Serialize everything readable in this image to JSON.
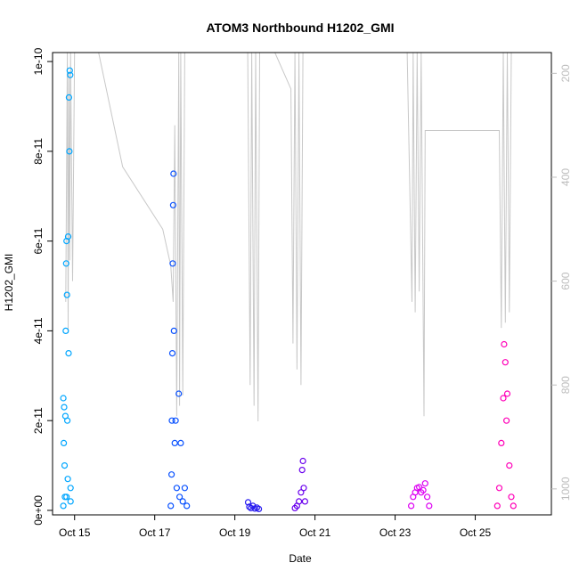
{
  "chart_data": {
    "type": "scatter",
    "title": "ATOM3 Northbound H1202_GMI",
    "xlabel": "Date",
    "ylabel": "H1202_GMI",
    "x_ticks": [
      "Oct 15",
      "Oct 17",
      "Oct 19",
      "Oct 21",
      "Oct 23",
      "Oct 25"
    ],
    "x_tick_days": [
      15,
      17,
      19,
      21,
      23,
      25
    ],
    "xlim": [
      14.45,
      26.9
    ],
    "y_ticks": [
      0,
      2e-11,
      4e-11,
      6e-11,
      8e-11,
      1e-10
    ],
    "y_tick_labels": [
      "0e+00",
      "2e-11",
      "4e-11",
      "6e-11",
      "8e-11",
      "1e-10"
    ],
    "ylim": [
      -1e-12,
      1.02e-10
    ],
    "right_axis": {
      "ticks": [
        200,
        400,
        600,
        800,
        1000
      ],
      "reversed": true,
      "lim": [
        1050,
        160
      ],
      "color": "#bdbdbd"
    },
    "pressure_trace": [
      [
        14.78,
        640
      ],
      [
        14.8,
        400
      ],
      [
        14.82,
        160
      ],
      [
        14.84,
        700
      ],
      [
        14.86,
        200
      ],
      [
        14.88,
        560
      ],
      [
        14.9,
        160
      ],
      [
        14.95,
        600
      ],
      [
        15.0,
        160
      ],
      [
        15.6,
        160
      ],
      [
        16.2,
        380
      ],
      [
        17.2,
        500
      ],
      [
        17.4,
        570
      ],
      [
        17.46,
        640
      ],
      [
        17.5,
        300
      ],
      [
        17.55,
        860
      ],
      [
        17.6,
        160
      ],
      [
        17.62,
        840
      ],
      [
        17.65,
        160
      ],
      [
        17.7,
        820
      ],
      [
        17.75,
        160
      ],
      [
        17.8,
        160
      ],
      [
        18.5,
        160
      ],
      [
        19.2,
        160
      ],
      [
        19.32,
        160
      ],
      [
        19.38,
        800
      ],
      [
        19.42,
        160
      ],
      [
        19.48,
        840
      ],
      [
        19.52,
        160
      ],
      [
        19.58,
        870
      ],
      [
        19.62,
        160
      ],
      [
        20.0,
        160
      ],
      [
        20.4,
        230
      ],
      [
        20.45,
        720
      ],
      [
        20.5,
        160
      ],
      [
        20.55,
        770
      ],
      [
        20.6,
        160
      ],
      [
        20.65,
        800
      ],
      [
        20.7,
        160
      ],
      [
        20.75,
        160
      ],
      [
        21.5,
        160
      ],
      [
        23.3,
        160
      ],
      [
        23.42,
        640
      ],
      [
        23.45,
        160
      ],
      [
        23.5,
        660
      ],
      [
        23.55,
        160
      ],
      [
        23.6,
        620
      ],
      [
        23.65,
        160
      ],
      [
        23.72,
        860
      ],
      [
        23.75,
        310
      ],
      [
        24.5,
        310
      ],
      [
        25.5,
        310
      ],
      [
        25.6,
        310
      ],
      [
        25.65,
        690
      ],
      [
        25.7,
        160
      ],
      [
        25.75,
        680
      ],
      [
        25.8,
        160
      ],
      [
        25.85,
        660
      ],
      [
        25.9,
        160
      ],
      [
        25.95,
        160
      ]
    ],
    "series": [
      {
        "color": "#00a6ff",
        "points": [
          [
            14.72,
            2.5e-11
          ],
          [
            14.72,
            1e-12
          ],
          [
            14.73,
            1.5e-11
          ],
          [
            14.74,
            2.3e-11
          ],
          [
            14.75,
            1e-11
          ],
          [
            14.76,
            3e-12
          ],
          [
            14.77,
            2.1e-11
          ],
          [
            14.78,
            4e-11
          ],
          [
            14.79,
            5.5e-11
          ],
          [
            14.8,
            6e-11
          ],
          [
            14.8,
            3e-12
          ],
          [
            14.81,
            4.8e-11
          ],
          [
            14.82,
            2e-11
          ],
          [
            14.83,
            7e-12
          ],
          [
            14.84,
            6.1e-11
          ],
          [
            14.85,
            3.5e-11
          ],
          [
            14.86,
            9.2e-11
          ],
          [
            14.87,
            8e-11
          ],
          [
            14.88,
            9.8e-11
          ],
          [
            14.89,
            9.7e-11
          ],
          [
            14.9,
            5e-12
          ],
          [
            14.9,
            2e-12
          ]
        ]
      },
      {
        "color": "#0a52ff",
        "points": [
          [
            17.4,
            1e-12
          ],
          [
            17.42,
            8e-12
          ],
          [
            17.43,
            2e-11
          ],
          [
            17.44,
            3.5e-11
          ],
          [
            17.45,
            5.5e-11
          ],
          [
            17.46,
            6.8e-11
          ],
          [
            17.47,
            7.5e-11
          ],
          [
            17.48,
            4e-11
          ],
          [
            17.5,
            1.5e-11
          ],
          [
            17.52,
            2e-11
          ],
          [
            17.55,
            5e-12
          ],
          [
            17.6,
            2.6e-11
          ],
          [
            17.62,
            3e-12
          ],
          [
            17.65,
            1.5e-11
          ],
          [
            17.7,
            2e-12
          ],
          [
            17.75,
            5e-12
          ],
          [
            17.8,
            1e-12
          ]
        ]
      },
      {
        "color": "#2a1df0",
        "points": [
          [
            19.33,
            1.8e-12
          ],
          [
            19.36,
            8e-13
          ],
          [
            19.4,
            5e-13
          ],
          [
            19.45,
            1e-12
          ],
          [
            19.5,
            4e-13
          ],
          [
            19.55,
            6e-13
          ],
          [
            19.6,
            3e-13
          ]
        ]
      },
      {
        "color": "#6a00ee",
        "points": [
          [
            20.5,
            5e-13
          ],
          [
            20.55,
            1e-12
          ],
          [
            20.6,
            2e-12
          ],
          [
            20.65,
            4e-12
          ],
          [
            20.68,
            9e-12
          ],
          [
            20.7,
            1.1e-11
          ],
          [
            20.72,
            5e-12
          ],
          [
            20.75,
            2e-12
          ]
        ]
      },
      {
        "color": "#dd00f2",
        "points": [
          [
            23.4,
            1e-12
          ],
          [
            23.45,
            3e-12
          ],
          [
            23.5,
            4e-12
          ],
          [
            23.55,
            5e-12
          ],
          [
            23.6,
            5.2e-12
          ],
          [
            23.65,
            4e-12
          ],
          [
            23.7,
            4.5e-12
          ],
          [
            23.75,
            6e-12
          ],
          [
            23.8,
            3e-12
          ],
          [
            23.85,
            1e-12
          ]
        ]
      },
      {
        "color": "#ff00b8",
        "points": [
          [
            25.55,
            1e-12
          ],
          [
            25.6,
            5e-12
          ],
          [
            25.65,
            1.5e-11
          ],
          [
            25.7,
            2.5e-11
          ],
          [
            25.72,
            3.7e-11
          ],
          [
            25.75,
            3.3e-11
          ],
          [
            25.78,
            2e-11
          ],
          [
            25.8,
            2.6e-11
          ],
          [
            25.85,
            1e-11
          ],
          [
            25.9,
            3e-12
          ],
          [
            25.95,
            1e-12
          ]
        ]
      }
    ],
    "grid": false,
    "legend": "none"
  }
}
